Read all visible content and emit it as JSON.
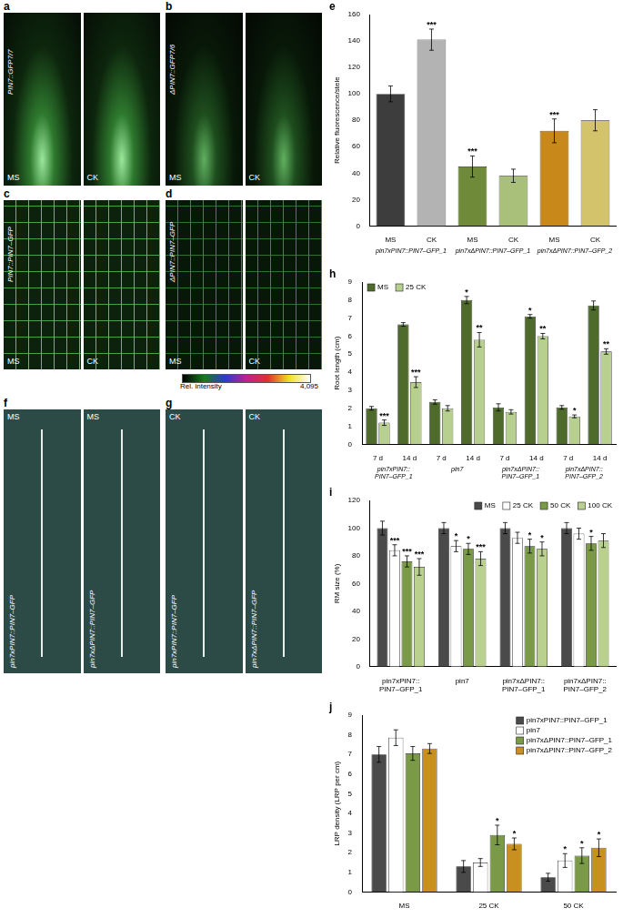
{
  "image_panels": [
    {
      "panel": "a",
      "label": "PIN7::GFP7/7",
      "conditions": [
        "MS",
        "CK"
      ]
    },
    {
      "panel": "b",
      "label": "ΔPIN7::GFP7/6",
      "conditions": [
        "MS",
        "CK"
      ]
    },
    {
      "panel": "c",
      "label": "PIN7::PIN7–GFP",
      "conditions": [
        "MS",
        "CK"
      ]
    },
    {
      "panel": "d",
      "label": "ΔPIN7::PIN7–GFP",
      "conditions": [
        "MS",
        "CK"
      ]
    },
    {
      "panel": "f",
      "conditions": [
        "MS",
        "MS"
      ],
      "genotypes": [
        "pin7xPIN7::PIN7–GFP",
        "pin7xΔPIN7::PIN7–GFP"
      ]
    },
    {
      "panel": "g",
      "conditions": [
        "CK",
        "CK"
      ],
      "genotypes": [
        "pin7xPIN7::PIN7–GFP",
        "pin7xΔPIN7::PIN7–GFP"
      ]
    }
  ],
  "colorbar": {
    "label": "Rel. intensity",
    "range": [
      0,
      4095
    ],
    "ticks": [
      {
        "value": 4095,
        "label": "4,095"
      }
    ]
  },
  "chart_data": [
    {
      "panel": "e",
      "type": "bar",
      "ylabel": "Relative fluorescence/stele",
      "categories": [
        "MS",
        "CK",
        "MS",
        "CK",
        "MS",
        "CK"
      ],
      "groups": [
        "pin7xPIN7::PIN7–GFP_1",
        "pin7xΔPIN7::PIN7–GFP_1",
        "pin7xΔPIN7::PIN7–GFP_2"
      ],
      "values": [
        100,
        141,
        45,
        38,
        72,
        80
      ],
      "errors": [
        6,
        8,
        8,
        5,
        9,
        8
      ],
      "stars": [
        null,
        "***",
        "***",
        null,
        "***",
        null
      ],
      "colors": [
        "#3d3d3d",
        "#b3b3b3",
        "#6f8b3a",
        "#a9c07a",
        "#c8881a",
        "#d3c36a"
      ],
      "ylim": [
        0,
        160
      ],
      "yticks": [
        0,
        20,
        40,
        60,
        80,
        100,
        120,
        140,
        160
      ],
      "grid": false
    },
    {
      "panel": "h",
      "type": "bar",
      "ylabel": "Root length (cm)",
      "categories": [
        "7 d",
        "14 d",
        "7 d",
        "14 d",
        "7 d",
        "14 d",
        "7 d",
        "14 d"
      ],
      "groups": [
        "pin7xPIN7::PIN7–GFP_1",
        "pin7",
        "pin7xΔPIN7::PIN7–GFP_1",
        "pin7xΔPIN7::PIN7–GFP_2"
      ],
      "series": [
        {
          "name": "MS",
          "color": "#4e6b2b",
          "values": [
            2.0,
            6.65,
            2.35,
            8.0,
            2.05,
            7.1,
            2.05,
            7.7
          ],
          "errors": [
            0.1,
            0.1,
            0.12,
            0.2,
            0.2,
            0.1,
            0.1,
            0.25
          ],
          "stars": [
            null,
            null,
            null,
            "*",
            null,
            "*",
            null,
            null
          ]
        },
        {
          "name": "25 CK",
          "color": "#b8d08f",
          "values": [
            1.2,
            3.45,
            2.0,
            5.8,
            1.8,
            6.0,
            1.55,
            5.15
          ],
          "errors": [
            0.15,
            0.3,
            0.15,
            0.4,
            0.12,
            0.15,
            0.08,
            0.15
          ],
          "stars": [
            "***",
            "***",
            null,
            "**",
            null,
            "**",
            "*",
            "**"
          ]
        }
      ],
      "legend": "upper left",
      "ylim": [
        0,
        9
      ],
      "yticks": [
        0,
        1,
        2,
        3,
        4,
        5,
        6,
        7,
        8,
        9
      ],
      "grid": false
    },
    {
      "panel": "i",
      "type": "bar",
      "ylabel": "RM size (%)",
      "categories": [
        "pin7xPIN7::PIN7–GFP_1",
        "pin7",
        "pin7xΔPIN7::PIN7–GFP_1",
        "pin7xΔPIN7::PIN7–GFP_2"
      ],
      "series": [
        {
          "name": "MS",
          "color": "#4a4a4a",
          "values": [
            100,
            100,
            100,
            100
          ],
          "errors": [
            5,
            4,
            4,
            4
          ],
          "stars": [
            null,
            null,
            null,
            null
          ]
        },
        {
          "name": "25 CK",
          "color": "#ffffff",
          "values": [
            84,
            87,
            93,
            96
          ],
          "errors": [
            4,
            4,
            4,
            4
          ],
          "stars": [
            "***",
            "*",
            null,
            null
          ]
        },
        {
          "name": "50 CK",
          "color": "#7a9a48",
          "values": [
            76,
            85,
            87,
            89
          ],
          "errors": [
            4,
            4,
            5,
            5
          ],
          "stars": [
            "***",
            "*",
            "*",
            "*"
          ]
        },
        {
          "name": "100 CK",
          "color": "#b9d08e",
          "values": [
            72,
            78,
            85,
            91
          ],
          "errors": [
            6,
            5,
            5,
            5
          ],
          "stars": [
            "***",
            "***",
            "*",
            null
          ]
        }
      ],
      "legend": "upper right",
      "ylim": [
        0,
        120
      ],
      "yticks": [
        0,
        20,
        40,
        60,
        80,
        100,
        120
      ],
      "grid": false
    },
    {
      "panel": "j",
      "type": "bar",
      "ylabel": "LRP density (LRP per cm)",
      "categories": [
        "MS",
        "25 CK",
        "50 CK"
      ],
      "series": [
        {
          "name": "pin7xPIN7::PIN7–GFP_1",
          "color": "#4a4a4a",
          "values": [
            7.0,
            1.3,
            0.75
          ],
          "errors": [
            0.4,
            0.3,
            0.2
          ],
          "stars": [
            null,
            null,
            null
          ]
        },
        {
          "name": "pin7",
          "color": "#ffffff",
          "values": [
            7.85,
            1.5,
            1.6
          ],
          "errors": [
            0.4,
            0.2,
            0.35
          ],
          "stars": [
            null,
            null,
            "*"
          ]
        },
        {
          "name": "pin7xΔPIN7::PIN7–GFP_1",
          "color": "#7a9a48",
          "values": [
            7.05,
            2.9,
            1.85
          ],
          "errors": [
            0.35,
            0.5,
            0.4
          ],
          "stars": [
            null,
            "*",
            "*"
          ]
        },
        {
          "name": "pin7xΔPIN7::PIN7–GFP_2",
          "color": "#c8901e",
          "values": [
            7.3,
            2.45,
            2.25
          ],
          "errors": [
            0.25,
            0.3,
            0.45
          ],
          "stars": [
            null,
            "*",
            "*"
          ]
        }
      ],
      "legend": "upper right",
      "ylim": [
        0,
        9
      ],
      "yticks": [
        0,
        1,
        2,
        3,
        4,
        5,
        6,
        7,
        8,
        9
      ],
      "grid": false
    }
  ]
}
